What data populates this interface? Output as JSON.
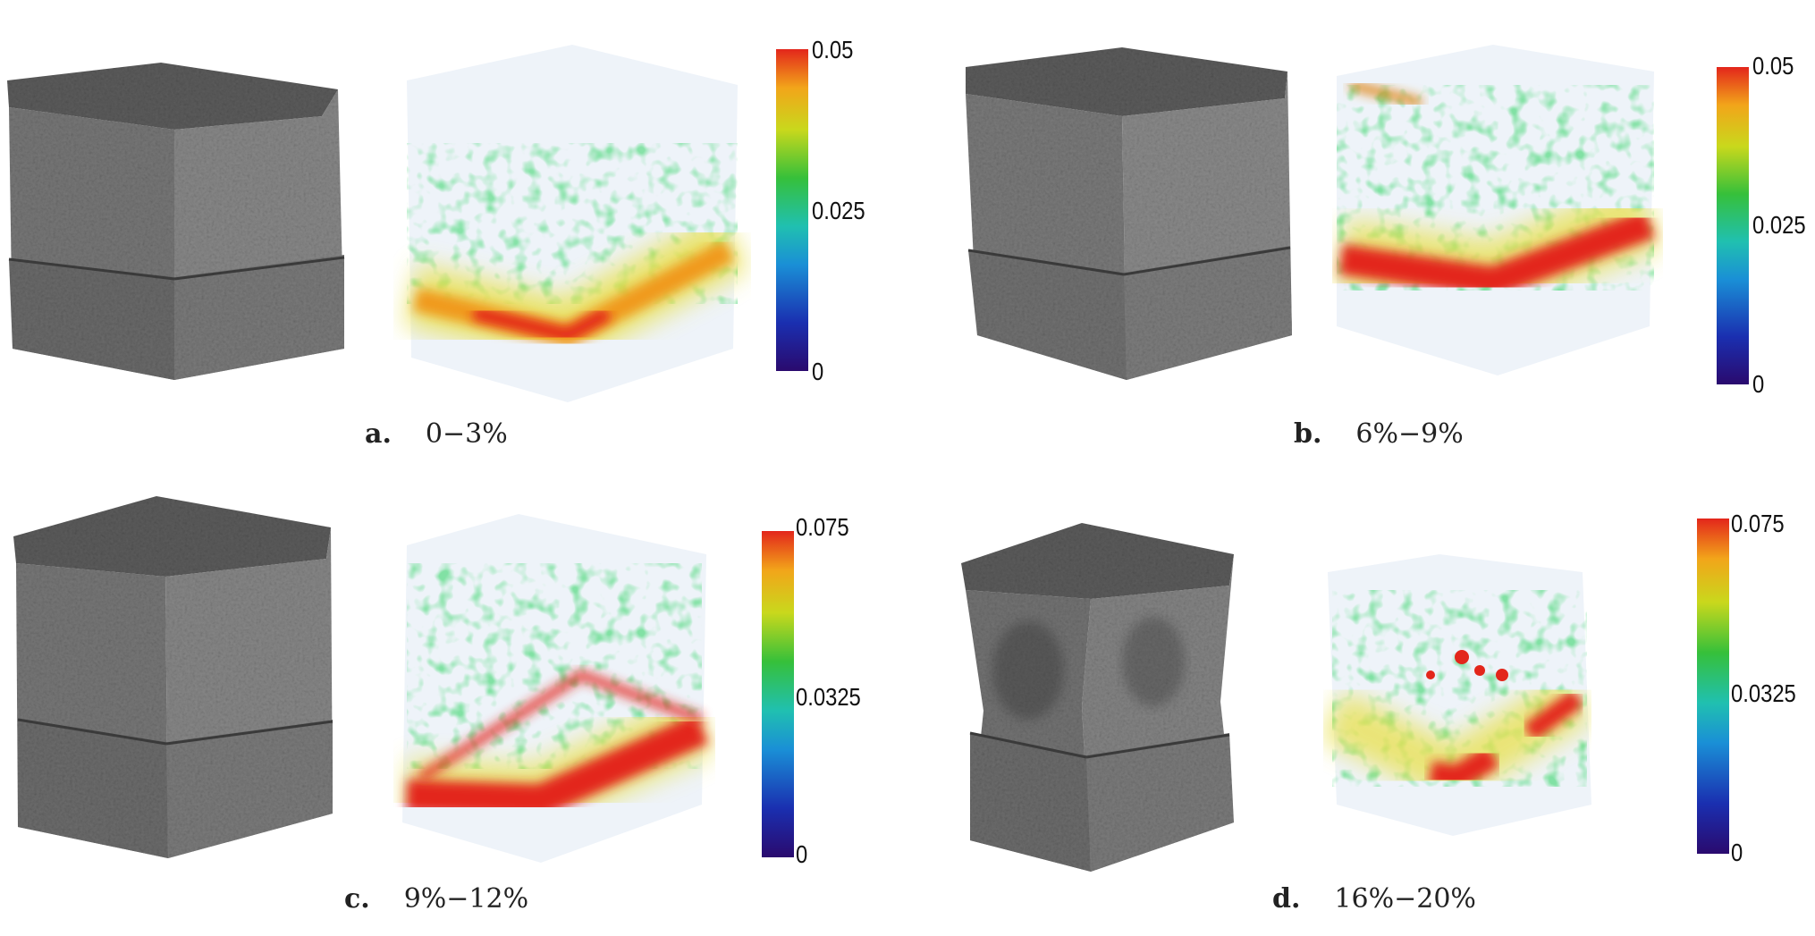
{
  "colors": {
    "cube_gray": "#6f6f6f",
    "cube_top": "#5a5a5a",
    "strain_low": "#2a0a6e",
    "strain_mid": "#1fb85a",
    "strain_high": "#e3261b"
  },
  "panels": [
    {
      "letter": "a.",
      "range": "0−3%",
      "scale_max": "0.05",
      "scale_mid": "0.025",
      "scale_min": "0"
    },
    {
      "letter": "b.",
      "range": "6%−9%",
      "scale_max": "0.05",
      "scale_mid": "0.025",
      "scale_min": "0"
    },
    {
      "letter": "c.",
      "range": "9%−12%",
      "scale_max": "0.075",
      "scale_mid": "0.0325",
      "scale_min": "0"
    },
    {
      "letter": "d.",
      "range": "16%−20%",
      "scale_max": "0.075",
      "scale_mid": "0.0325",
      "scale_min": "0"
    }
  ]
}
